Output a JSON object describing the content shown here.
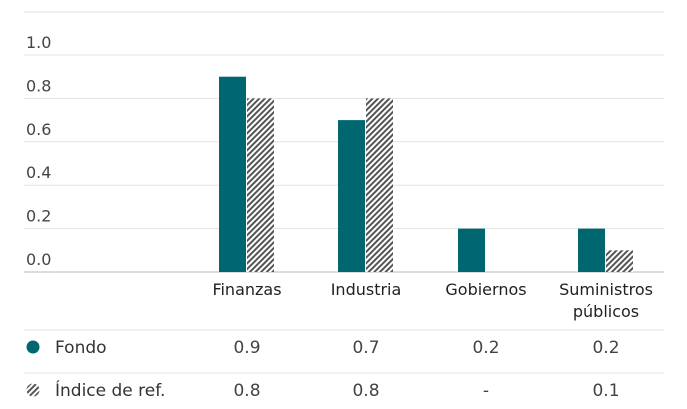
{
  "chart_data": {
    "type": "bar",
    "categories": [
      [
        "Finanzas"
      ],
      [
        "Industria"
      ],
      [
        "Gobiernos"
      ],
      [
        "Suministros",
        "públicos"
      ]
    ],
    "series": [
      {
        "name": "Fondo",
        "values": [
          0.9,
          0.7,
          0.2,
          0.2
        ],
        "display": [
          "0.9",
          "0.7",
          "0.2",
          "0.2"
        ],
        "color": "#006670",
        "pattern": "solid"
      },
      {
        "name": "Índice de ref.",
        "values": [
          0.8,
          0.8,
          null,
          0.1
        ],
        "display": [
          "0.8",
          "0.8",
          "-",
          "0.1"
        ],
        "color": "#555555",
        "pattern": "hatched"
      }
    ],
    "yticks": [
      "0.0",
      "0.2",
      "0.4",
      "0.6",
      "0.8",
      "1.0"
    ],
    "ylim": [
      0,
      1.0
    ],
    "grid": true,
    "legend": "table-below"
  }
}
